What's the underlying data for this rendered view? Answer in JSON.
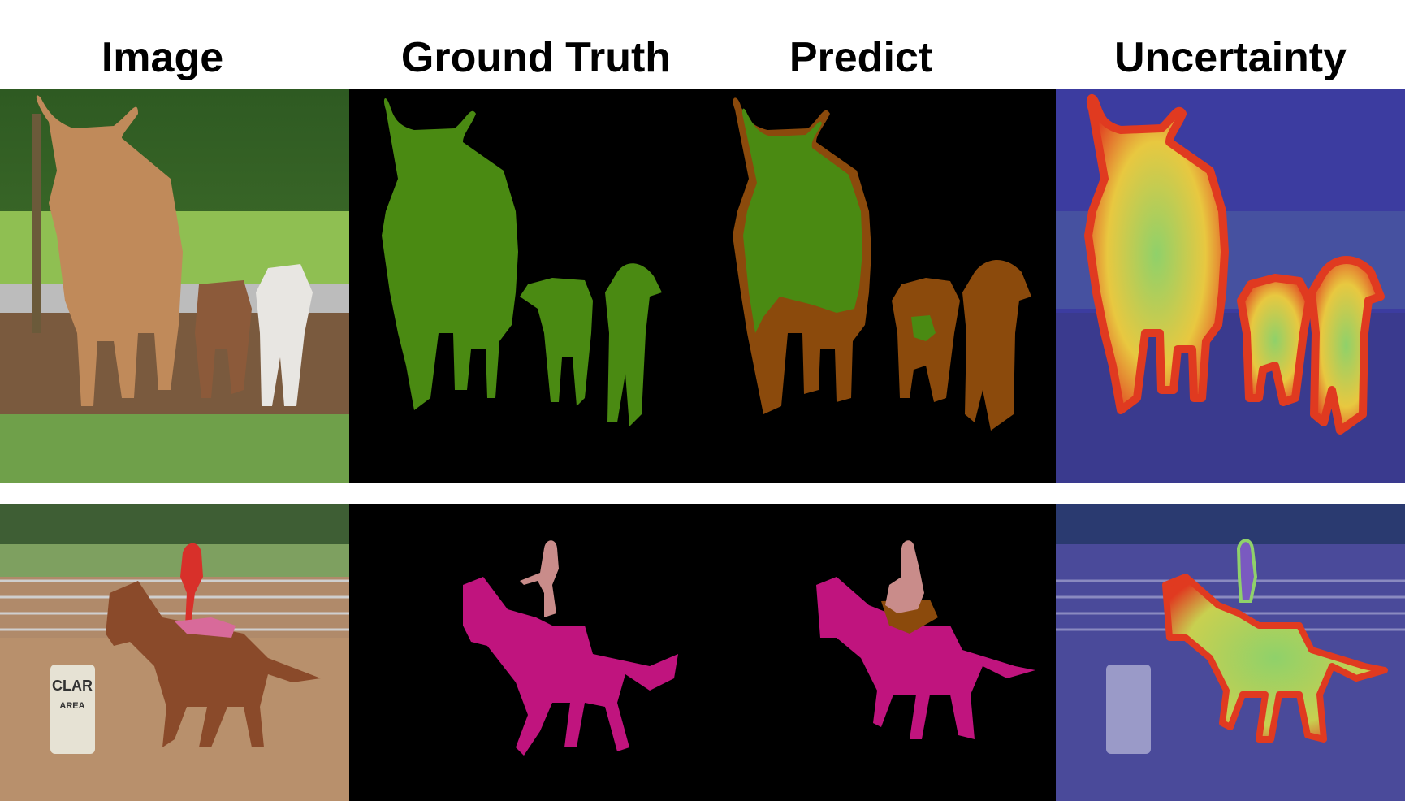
{
  "headers": {
    "image": "Image",
    "ground_truth": "Ground Truth",
    "predict": "Predict",
    "uncertainty": "Uncertainty"
  },
  "row2_barrel_text": {
    "line1": "CLAR",
    "line2": "AREA"
  },
  "colors": {
    "cow_mask": "#4a8a12",
    "boundary_brown": "#8b4a0c",
    "horse_mask": "#c0147e",
    "person_mask": "#c98c8a",
    "background_mask": "#000000",
    "uncertainty_tint": "#3c3ca0"
  }
}
